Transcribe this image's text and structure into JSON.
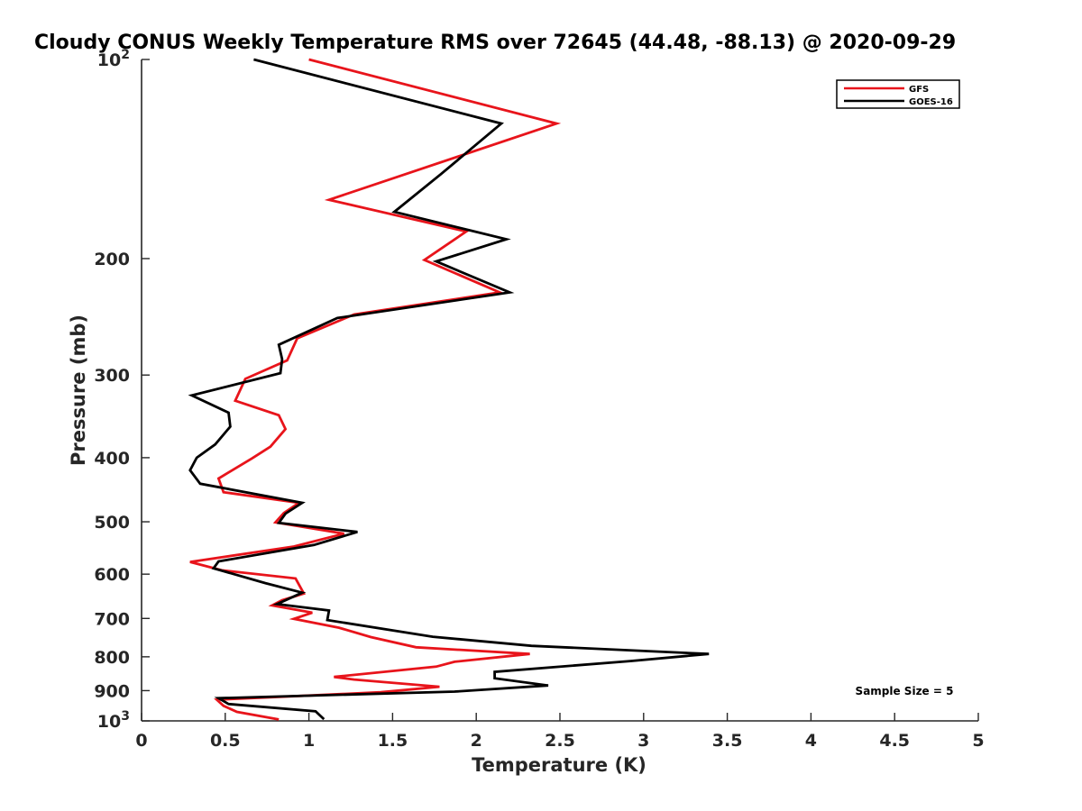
{
  "chart_data": {
    "type": "line",
    "title": "Cloudy CONUS Weekly Temperature RMS over 72645 (44.48, -88.13) @ 2020-09-29",
    "xlabel": "Temperature (K)",
    "ylabel": "Pressure (mb)",
    "xlim": [
      0,
      5
    ],
    "ylim": [
      100,
      1000
    ],
    "y_scale": "log",
    "y_reversed": true,
    "grid": false,
    "legend_position": "top-right",
    "annotation": "Sample Size = 5",
    "x_ticks": [
      {
        "value": 0,
        "label": "0"
      },
      {
        "value": 0.5,
        "label": "0.5"
      },
      {
        "value": 1,
        "label": "1"
      },
      {
        "value": 1.5,
        "label": "1.5"
      },
      {
        "value": 2,
        "label": "2"
      },
      {
        "value": 2.5,
        "label": "2.5"
      },
      {
        "value": 3,
        "label": "3"
      },
      {
        "value": 3.5,
        "label": "3.5"
      },
      {
        "value": 4,
        "label": "4"
      },
      {
        "value": 4.5,
        "label": "4.5"
      },
      {
        "value": 5,
        "label": "5"
      }
    ],
    "y_ticks": [
      {
        "value": 100,
        "label": "10",
        "sup": "2"
      },
      {
        "value": 200,
        "label": "200"
      },
      {
        "value": 300,
        "label": "300"
      },
      {
        "value": 400,
        "label": "400"
      },
      {
        "value": 500,
        "label": "500"
      },
      {
        "value": 600,
        "label": "600"
      },
      {
        "value": 700,
        "label": "700"
      },
      {
        "value": 800,
        "label": "800"
      },
      {
        "value": 900,
        "label": "900"
      },
      {
        "value": 1000,
        "label": "10",
        "sup": "3"
      }
    ],
    "series": [
      {
        "name": "GFS",
        "color": "#e8141b",
        "points": [
          [
            1.0,
            100
          ],
          [
            2.48,
            125
          ],
          [
            1.12,
            163
          ],
          [
            1.94,
            182
          ],
          [
            1.69,
            201
          ],
          [
            2.14,
            225
          ],
          [
            1.27,
            243
          ],
          [
            0.93,
            264
          ],
          [
            0.87,
            285
          ],
          [
            0.62,
            304
          ],
          [
            0.56,
            328
          ],
          [
            0.82,
            345
          ],
          [
            0.86,
            362
          ],
          [
            0.77,
            385
          ],
          [
            0.66,
            401
          ],
          [
            0.46,
            430
          ],
          [
            0.49,
            451
          ],
          [
            0.94,
            468
          ],
          [
            0.85,
            485
          ],
          [
            0.8,
            501
          ],
          [
            1.21,
            521
          ],
          [
            0.91,
            545
          ],
          [
            0.29,
            575
          ],
          [
            0.48,
            592
          ],
          [
            0.92,
            609
          ],
          [
            0.97,
            642
          ],
          [
            0.84,
            657
          ],
          [
            0.78,
            669
          ],
          [
            1.02,
            686
          ],
          [
            0.91,
            701
          ],
          [
            1.18,
            723
          ],
          [
            1.37,
            747
          ],
          [
            1.64,
            774
          ],
          [
            2.32,
            792
          ],
          [
            1.87,
            814
          ],
          [
            1.76,
            828
          ],
          [
            1.15,
            858
          ],
          [
            1.27,
            866
          ],
          [
            1.78,
            888
          ],
          [
            1.43,
            905
          ],
          [
            0.45,
            929
          ],
          [
            0.49,
            949
          ],
          [
            0.57,
            969
          ],
          [
            0.82,
            995
          ]
        ]
      },
      {
        "name": "GOES-16",
        "color": "#000000",
        "points": [
          [
            0.67,
            100
          ],
          [
            2.15,
            125
          ],
          [
            1.79,
            149
          ],
          [
            1.51,
            170
          ],
          [
            2.18,
            187
          ],
          [
            1.76,
            202
          ],
          [
            2.2,
            225
          ],
          [
            1.17,
            246
          ],
          [
            0.82,
            270
          ],
          [
            0.84,
            284
          ],
          [
            0.83,
            298
          ],
          [
            0.3,
            322
          ],
          [
            0.52,
            342
          ],
          [
            0.53,
            359
          ],
          [
            0.44,
            382
          ],
          [
            0.33,
            400
          ],
          [
            0.29,
            418
          ],
          [
            0.35,
            438
          ],
          [
            0.96,
            468
          ],
          [
            0.86,
            486
          ],
          [
            0.82,
            502
          ],
          [
            1.29,
            518
          ],
          [
            1.03,
            542
          ],
          [
            0.46,
            574
          ],
          [
            0.43,
            588
          ],
          [
            0.74,
            619
          ],
          [
            0.96,
            640
          ],
          [
            0.81,
            666
          ],
          [
            1.12,
            681
          ],
          [
            1.11,
            704
          ],
          [
            1.74,
            746
          ],
          [
            2.33,
            770
          ],
          [
            3.39,
            792
          ],
          [
            2.92,
            812
          ],
          [
            2.11,
            843
          ],
          [
            2.11,
            862
          ],
          [
            2.43,
            884
          ],
          [
            1.87,
            903
          ],
          [
            0.46,
            924
          ],
          [
            0.52,
            943
          ],
          [
            1.04,
            967
          ],
          [
            1.09,
            994
          ]
        ]
      }
    ]
  }
}
